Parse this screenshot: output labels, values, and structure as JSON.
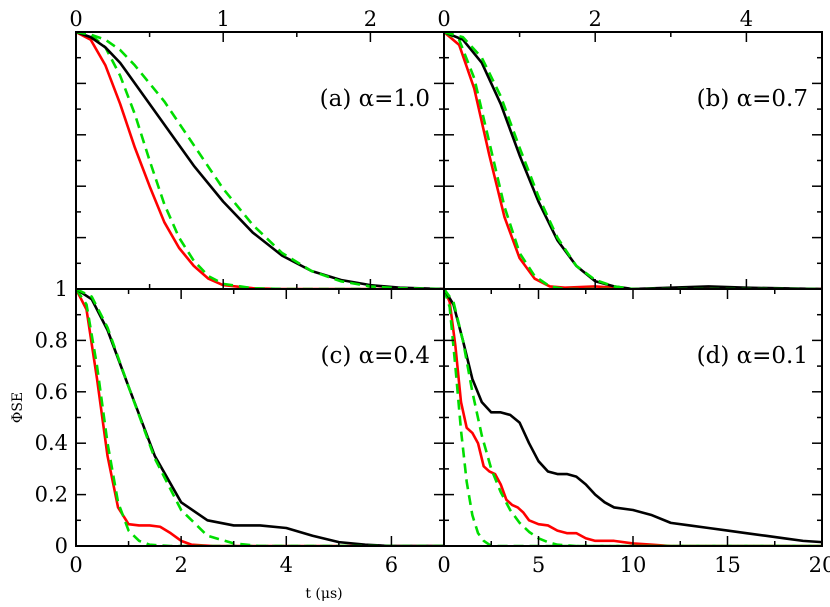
{
  "chart_data": [
    {
      "type": "line",
      "panel": "a",
      "annotation": "(a) α=1.0",
      "xlim": [
        0,
        2.5
      ],
      "ylim": [
        0,
        1
      ],
      "x_ticks": [
        "0",
        "1",
        "2"
      ],
      "x_tick_values": [
        0,
        1,
        2
      ],
      "x_tick_side": "top",
      "y_tick_labels": [],
      "series": [
        {
          "color": "#ff0000",
          "style": "solid",
          "x": [
            0,
            0.1,
            0.2,
            0.3,
            0.4,
            0.5,
            0.6,
            0.7,
            0.8,
            0.9,
            1.0,
            1.2,
            1.4,
            2.5
          ],
          "y": [
            1,
            0.97,
            0.87,
            0.72,
            0.55,
            0.4,
            0.26,
            0.16,
            0.09,
            0.04,
            0.015,
            0.003,
            0,
            0
          ]
        },
        {
          "color": "#00dd00",
          "style": "dashed",
          "x": [
            0,
            0.1,
            0.2,
            0.3,
            0.4,
            0.5,
            0.6,
            0.7,
            0.8,
            0.9,
            1.0,
            1.2,
            1.4,
            2.5
          ],
          "y": [
            1,
            0.99,
            0.94,
            0.83,
            0.68,
            0.5,
            0.33,
            0.2,
            0.11,
            0.05,
            0.02,
            0.003,
            0,
            0
          ]
        },
        {
          "color": "#000000",
          "style": "solid",
          "x": [
            0,
            0.1,
            0.2,
            0.3,
            0.4,
            0.6,
            0.8,
            1.0,
            1.2,
            1.4,
            1.6,
            1.8,
            2.0,
            2.2,
            2.5
          ],
          "y": [
            1,
            0.98,
            0.94,
            0.88,
            0.8,
            0.64,
            0.48,
            0.34,
            0.22,
            0.13,
            0.07,
            0.035,
            0.015,
            0.005,
            0
          ]
        },
        {
          "color": "#00dd00",
          "style": "dashed",
          "x": [
            0,
            0.1,
            0.2,
            0.3,
            0.4,
            0.6,
            0.8,
            1.0,
            1.2,
            1.4,
            1.6,
            1.8,
            2.0,
            2.2,
            2.5
          ],
          "y": [
            1,
            0.99,
            0.97,
            0.93,
            0.87,
            0.73,
            0.56,
            0.39,
            0.25,
            0.14,
            0.07,
            0.03,
            0.01,
            0.003,
            0
          ]
        }
      ]
    },
    {
      "type": "line",
      "panel": "b",
      "annotation": "(b) α=0.7",
      "xlim": [
        0,
        5
      ],
      "ylim": [
        0,
        1
      ],
      "x_ticks": [
        "0",
        "2",
        "4"
      ],
      "x_tick_values": [
        0,
        2,
        4
      ],
      "x_tick_side": "top",
      "y_tick_labels": [],
      "series": [
        {
          "color": "#ff0000",
          "style": "solid",
          "x": [
            0,
            0.2,
            0.4,
            0.6,
            0.8,
            1.0,
            1.2,
            1.4,
            1.6,
            2.0,
            2.5,
            5
          ],
          "y": [
            1,
            0.95,
            0.78,
            0.52,
            0.28,
            0.12,
            0.04,
            0.01,
            0.005,
            0.01,
            0,
            0
          ]
        },
        {
          "color": "#00dd00",
          "style": "dashed",
          "x": [
            0,
            0.2,
            0.4,
            0.6,
            0.8,
            1.0,
            1.2,
            1.4,
            1.6,
            2.0,
            5
          ],
          "y": [
            1,
            0.97,
            0.82,
            0.57,
            0.32,
            0.14,
            0.05,
            0.01,
            0,
            0,
            0
          ]
        },
        {
          "color": "#000000",
          "style": "solid",
          "x": [
            0,
            0.25,
            0.5,
            0.75,
            1.0,
            1.25,
            1.5,
            1.75,
            2.0,
            2.25,
            2.5,
            3.0,
            3.5,
            4.0,
            5.0
          ],
          "y": [
            1,
            0.97,
            0.88,
            0.72,
            0.52,
            0.34,
            0.19,
            0.09,
            0.03,
            0.01,
            0,
            0.005,
            0.01,
            0.005,
            0
          ]
        },
        {
          "color": "#00dd00",
          "style": "dashed",
          "x": [
            0,
            0.25,
            0.5,
            0.75,
            1.0,
            1.25,
            1.5,
            1.75,
            2.0,
            2.25,
            2.5,
            3.0,
            5.0
          ],
          "y": [
            1,
            0.98,
            0.9,
            0.75,
            0.55,
            0.36,
            0.2,
            0.09,
            0.035,
            0.01,
            0,
            0,
            0
          ]
        }
      ]
    },
    {
      "type": "line",
      "panel": "c",
      "annotation": "(c) α=0.4",
      "xlim": [
        0,
        7
      ],
      "ylim": [
        0,
        1
      ],
      "x_ticks": [
        "0",
        "2",
        "4",
        "6"
      ],
      "x_tick_values": [
        0,
        2,
        4,
        6
      ],
      "x_tick_side": "bottom",
      "y_tick_labels": [
        "0",
        "0.2",
        "0.4",
        "0.6",
        "0.8",
        "1"
      ],
      "y_tick_values": [
        0,
        0.2,
        0.4,
        0.6,
        0.8,
        1
      ],
      "ylabel": "ΦSE",
      "series": [
        {
          "color": "#ff0000",
          "style": "solid",
          "x": [
            0,
            0.2,
            0.4,
            0.6,
            0.8,
            1.0,
            1.2,
            1.4,
            1.6,
            1.8,
            2.0,
            2.2,
            2.6,
            7
          ],
          "y": [
            1,
            0.92,
            0.65,
            0.35,
            0.15,
            0.085,
            0.08,
            0.08,
            0.075,
            0.05,
            0.02,
            0.005,
            0,
            0
          ]
        },
        {
          "color": "#00dd00",
          "style": "dashed",
          "x": [
            0,
            0.2,
            0.4,
            0.6,
            0.8,
            1.0,
            1.2,
            1.4,
            1.8,
            7
          ],
          "y": [
            1,
            0.94,
            0.7,
            0.4,
            0.17,
            0.06,
            0.02,
            0.005,
            0,
            0
          ]
        },
        {
          "color": "#000000",
          "style": "solid",
          "x": [
            0,
            0.3,
            0.6,
            1.0,
            1.5,
            2.0,
            2.5,
            3.0,
            3.5,
            4.0,
            4.5,
            5.0,
            5.5,
            6.0,
            7.0
          ],
          "y": [
            1,
            0.96,
            0.84,
            0.62,
            0.35,
            0.17,
            0.1,
            0.08,
            0.08,
            0.07,
            0.04,
            0.015,
            0.005,
            0,
            0
          ]
        },
        {
          "color": "#00dd00",
          "style": "dashed",
          "x": [
            0,
            0.3,
            0.6,
            1.0,
            1.5,
            2.0,
            2.5,
            3.0,
            3.5,
            7.0
          ],
          "y": [
            1,
            0.97,
            0.85,
            0.62,
            0.34,
            0.14,
            0.04,
            0.01,
            0,
            0
          ]
        }
      ]
    },
    {
      "type": "line",
      "panel": "d",
      "annotation": "(d) α=0.1",
      "xlim": [
        0,
        20
      ],
      "ylim": [
        0,
        1
      ],
      "x_ticks": [
        "0",
        "5",
        "10",
        "15",
        "20"
      ],
      "x_tick_values": [
        0,
        5,
        10,
        15,
        20
      ],
      "x_tick_side": "bottom",
      "xlabel": "t (μs)",
      "y_tick_labels": [],
      "series": [
        {
          "color": "#ff0000",
          "style": "solid",
          "x": [
            0,
            0.3,
            0.6,
            0.9,
            1.2,
            1.5,
            1.8,
            2.1,
            2.4,
            2.7,
            3.0,
            3.3,
            3.6,
            3.9,
            4.2,
            4.5,
            5.0,
            5.5,
            6.0,
            6.5,
            7.0,
            7.5,
            8.0,
            9.0,
            10.0,
            11.0,
            12.0,
            20.0
          ],
          "y": [
            1,
            0.95,
            0.78,
            0.56,
            0.46,
            0.44,
            0.4,
            0.31,
            0.29,
            0.28,
            0.24,
            0.18,
            0.16,
            0.15,
            0.13,
            0.1,
            0.085,
            0.08,
            0.06,
            0.05,
            0.05,
            0.03,
            0.02,
            0.02,
            0.01,
            0.005,
            0,
            0
          ]
        },
        {
          "color": "#00dd00",
          "style": "dashed",
          "x": [
            0,
            0.3,
            0.6,
            0.9,
            1.2,
            1.5,
            1.8,
            2.1,
            2.4,
            2.7,
            3.0,
            20.0
          ],
          "y": [
            1,
            0.93,
            0.7,
            0.45,
            0.25,
            0.12,
            0.05,
            0.02,
            0.005,
            0,
            0,
            0
          ]
        },
        {
          "color": "#000000",
          "style": "solid",
          "x": [
            0,
            0.5,
            1.0,
            1.5,
            2.0,
            2.5,
            3.0,
            3.5,
            4.0,
            4.5,
            5.0,
            5.5,
            6.0,
            6.5,
            7.0,
            7.5,
            8.0,
            8.5,
            9.0,
            10.0,
            11.0,
            12.0,
            13.0,
            14.0,
            15.0,
            16.0,
            17.0,
            18.0,
            19.0,
            20.0
          ],
          "y": [
            1,
            0.94,
            0.8,
            0.65,
            0.56,
            0.52,
            0.52,
            0.51,
            0.48,
            0.4,
            0.33,
            0.29,
            0.28,
            0.28,
            0.27,
            0.24,
            0.2,
            0.17,
            0.15,
            0.14,
            0.12,
            0.09,
            0.08,
            0.07,
            0.06,
            0.05,
            0.04,
            0.03,
            0.02,
            0.015
          ]
        },
        {
          "color": "#00dd00",
          "style": "dashed",
          "x": [
            0,
            0.5,
            1.0,
            1.5,
            2.0,
            2.5,
            3.0,
            3.5,
            4.0,
            4.5,
            5.0,
            5.5,
            6.0,
            7.0,
            20.0
          ],
          "y": [
            1,
            0.95,
            0.8,
            0.6,
            0.43,
            0.3,
            0.21,
            0.14,
            0.09,
            0.055,
            0.03,
            0.015,
            0.005,
            0,
            0
          ]
        }
      ]
    }
  ]
}
